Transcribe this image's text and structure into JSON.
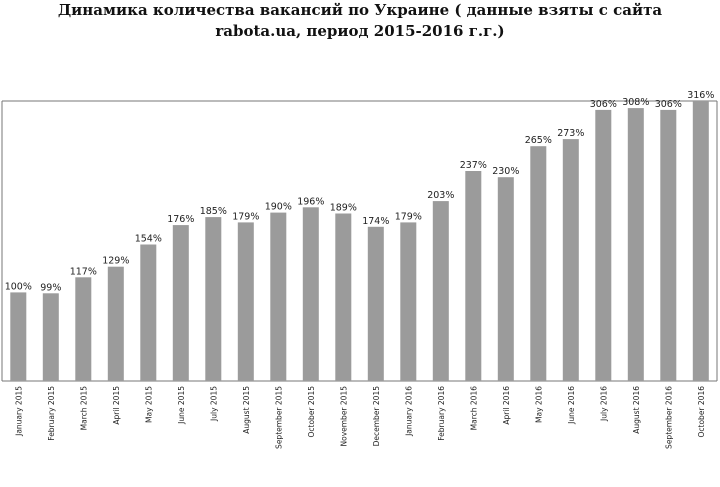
{
  "title": {
    "line1": "Динамика количества вакансий по Украине ( данные взяты с сайта",
    "line2": "rabota.ua, период 2015-2016 г.г.)"
  },
  "chart_data": {
    "type": "bar",
    "title": "Динамика количества вакансий по Украине ( данные взяты с сайта rabota.ua, период 2015-2016 г.г.)",
    "categories": [
      "January 2015",
      "February 2015",
      "March 2015",
      "April 2015",
      "May 2015",
      "June 2015",
      "July 2015",
      "August 2015",
      "September 2015",
      "October 2015",
      "November 2015",
      "December 2015",
      "January 2016",
      "February 2016",
      "March 2016",
      "April 2016",
      "May 2016",
      "June 2016",
      "July 2016",
      "August 2016",
      "September 2016",
      "October 2016"
    ],
    "values": [
      100,
      99,
      117,
      129,
      154,
      176,
      185,
      179,
      190,
      196,
      189,
      174,
      179,
      203,
      237,
      230,
      265,
      273,
      306,
      308,
      306,
      316
    ],
    "labels": [
      "100%",
      "99%",
      "117%",
      "129%",
      "154%",
      "176%",
      "185%",
      "179%",
      "190%",
      "196%",
      "189%",
      "174%",
      "179%",
      "203%",
      "237%",
      "230%",
      "265%",
      "273%",
      "306%",
      "308%",
      "306%",
      "316%"
    ],
    "ylim": [
      0,
      316
    ],
    "grid": false,
    "bar_color": "#9b9b9b"
  }
}
